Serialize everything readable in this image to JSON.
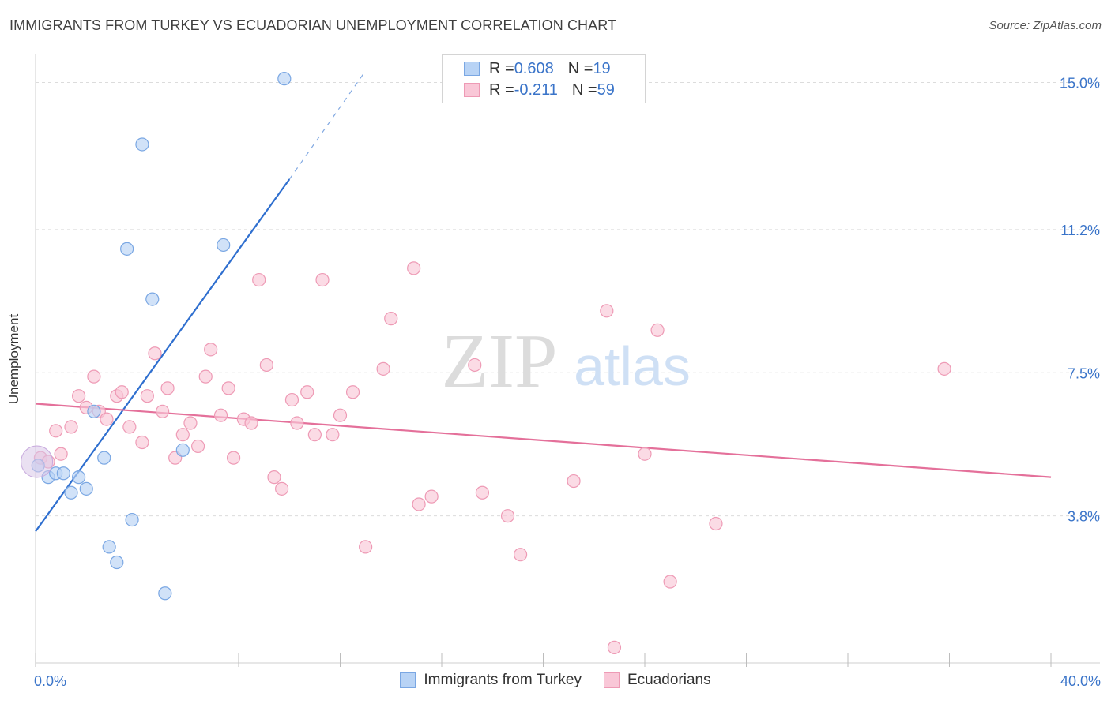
{
  "title": "IMMIGRANTS FROM TURKEY VS ECUADORIAN UNEMPLOYMENT CORRELATION CHART",
  "source": "Source: ZipAtlas.com",
  "watermark": {
    "zip": "ZIP",
    "atlas": "atlas"
  },
  "colors": {
    "turkey_fill": "#b8d3f5",
    "turkey_stroke": "#7aa7e3",
    "turkey_line": "#2f6fcf",
    "ecuador_fill": "#f9c7d7",
    "ecuador_stroke": "#ee9ab5",
    "ecuador_line": "#e4709a",
    "tick_label": "#3a74c9",
    "grid": "#dcdcdc"
  },
  "stats": {
    "turkey": {
      "r_label": "R = ",
      "r_value": "0.608",
      "n_label": "N = ",
      "n_value": "19"
    },
    "ecuador": {
      "r_label": "R = ",
      "r_value": "-0.211",
      "n_label": "N = ",
      "n_value": "59"
    }
  },
  "legend": {
    "turkey": "Immigrants from Turkey",
    "ecuador": "Ecuadorians"
  },
  "chart_data": {
    "type": "scatter",
    "title": "IMMIGRANTS FROM TURKEY VS ECUADORIAN UNEMPLOYMENT CORRELATION CHART",
    "xlabel": "",
    "ylabel": "Unemployment",
    "xlim": [
      0,
      40
    ],
    "ylim": [
      0,
      15.5
    ],
    "x_tick_labels": [
      "0.0%",
      "40.0%"
    ],
    "y_ticks": [
      3.8,
      7.5,
      11.2,
      15.0
    ],
    "y_tick_labels": [
      "3.8%",
      "7.5%",
      "11.2%",
      "15.0%"
    ],
    "grid": true,
    "series": [
      {
        "name": "Immigrants from Turkey",
        "points": [
          [
            0.1,
            5.1
          ],
          [
            0.5,
            4.8
          ],
          [
            0.8,
            4.9
          ],
          [
            1.1,
            4.9
          ],
          [
            1.4,
            4.4
          ],
          [
            1.7,
            4.8
          ],
          [
            2.0,
            4.5
          ],
          [
            2.3,
            6.5
          ],
          [
            2.7,
            5.3
          ],
          [
            2.9,
            3.0
          ],
          [
            3.2,
            2.6
          ],
          [
            3.6,
            10.7
          ],
          [
            3.8,
            3.7
          ],
          [
            4.2,
            13.4
          ],
          [
            4.6,
            9.4
          ],
          [
            5.1,
            1.8
          ],
          [
            5.8,
            5.5
          ],
          [
            7.4,
            10.8
          ],
          [
            9.8,
            15.1
          ]
        ],
        "trend": {
          "x1": 0,
          "y1": 3.4,
          "x2": 10.0,
          "y2": 12.5,
          "dash_x2": 13.0,
          "dash_y2": 15.3
        }
      },
      {
        "name": "Ecuadorians",
        "points": [
          [
            0.2,
            5.3
          ],
          [
            0.5,
            5.2
          ],
          [
            0.8,
            6.0
          ],
          [
            1.0,
            5.4
          ],
          [
            1.4,
            6.1
          ],
          [
            1.7,
            6.9
          ],
          [
            2.0,
            6.6
          ],
          [
            2.3,
            7.4
          ],
          [
            2.5,
            6.5
          ],
          [
            2.8,
            6.3
          ],
          [
            3.2,
            6.9
          ],
          [
            3.4,
            7.0
          ],
          [
            3.7,
            6.1
          ],
          [
            4.2,
            5.7
          ],
          [
            4.4,
            6.9
          ],
          [
            4.7,
            8.0
          ],
          [
            5.0,
            6.5
          ],
          [
            5.2,
            7.1
          ],
          [
            5.5,
            5.3
          ],
          [
            5.8,
            5.9
          ],
          [
            6.1,
            6.2
          ],
          [
            6.4,
            5.6
          ],
          [
            6.7,
            7.4
          ],
          [
            6.9,
            8.1
          ],
          [
            7.3,
            6.4
          ],
          [
            7.6,
            7.1
          ],
          [
            7.8,
            5.3
          ],
          [
            8.2,
            6.3
          ],
          [
            8.5,
            6.2
          ],
          [
            8.8,
            9.9
          ],
          [
            9.1,
            7.7
          ],
          [
            9.4,
            4.8
          ],
          [
            9.7,
            4.5
          ],
          [
            10.1,
            6.8
          ],
          [
            10.3,
            6.2
          ],
          [
            10.7,
            7.0
          ],
          [
            11.0,
            5.9
          ],
          [
            11.3,
            9.9
          ],
          [
            11.7,
            5.9
          ],
          [
            12.0,
            6.4
          ],
          [
            12.5,
            7.0
          ],
          [
            13.0,
            3.0
          ],
          [
            13.7,
            7.6
          ],
          [
            14.0,
            8.9
          ],
          [
            14.9,
            10.2
          ],
          [
            15.1,
            4.1
          ],
          [
            15.6,
            4.3
          ],
          [
            17.3,
            7.7
          ],
          [
            17.6,
            4.4
          ],
          [
            18.6,
            3.8
          ],
          [
            19.1,
            2.8
          ],
          [
            21.2,
            4.7
          ],
          [
            22.5,
            9.1
          ],
          [
            22.8,
            0.4
          ],
          [
            24.0,
            5.4
          ],
          [
            24.5,
            8.6
          ],
          [
            25.0,
            2.1
          ],
          [
            26.8,
            3.6
          ],
          [
            35.8,
            7.6
          ]
        ],
        "trend": {
          "x1": 0,
          "y1": 6.7,
          "x2": 40.0,
          "y2": 4.8
        }
      }
    ]
  }
}
